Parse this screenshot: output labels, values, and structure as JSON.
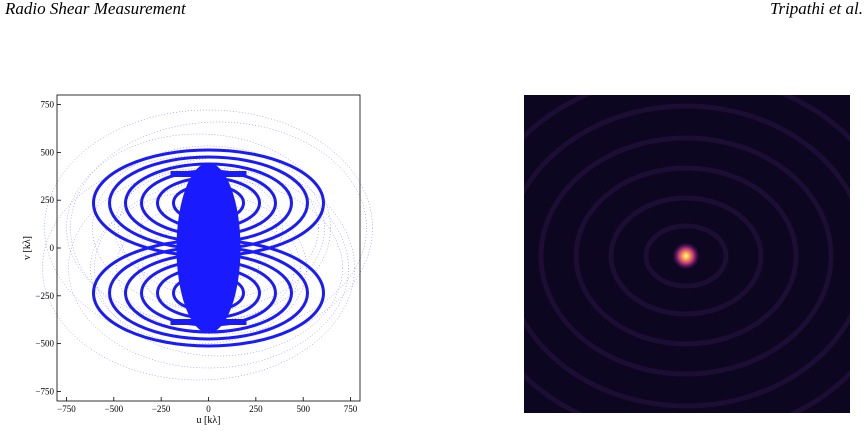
{
  "header": {
    "left": "Radio Shear Measurement",
    "right": "Tripathi et al."
  },
  "chart_data": {
    "type": "uv-coverage",
    "xlabel": "u [kλ]",
    "ylabel": "v [kλ]",
    "xlim": [
      -800,
      800
    ],
    "ylim": [
      -800,
      800
    ],
    "xticks": [
      {
        "value": -750,
        "label": "−750"
      },
      {
        "value": -500,
        "label": "−500"
      },
      {
        "value": -250,
        "label": "−250"
      },
      0,
      250,
      500,
      750
    ],
    "yticks": [
      {
        "value": -750,
        "label": "−750"
      },
      {
        "value": -500,
        "label": "−500"
      },
      {
        "value": -250,
        "label": "−250"
      },
      0,
      250,
      500,
      750
    ],
    "color": "#1a1aff"
  }
}
